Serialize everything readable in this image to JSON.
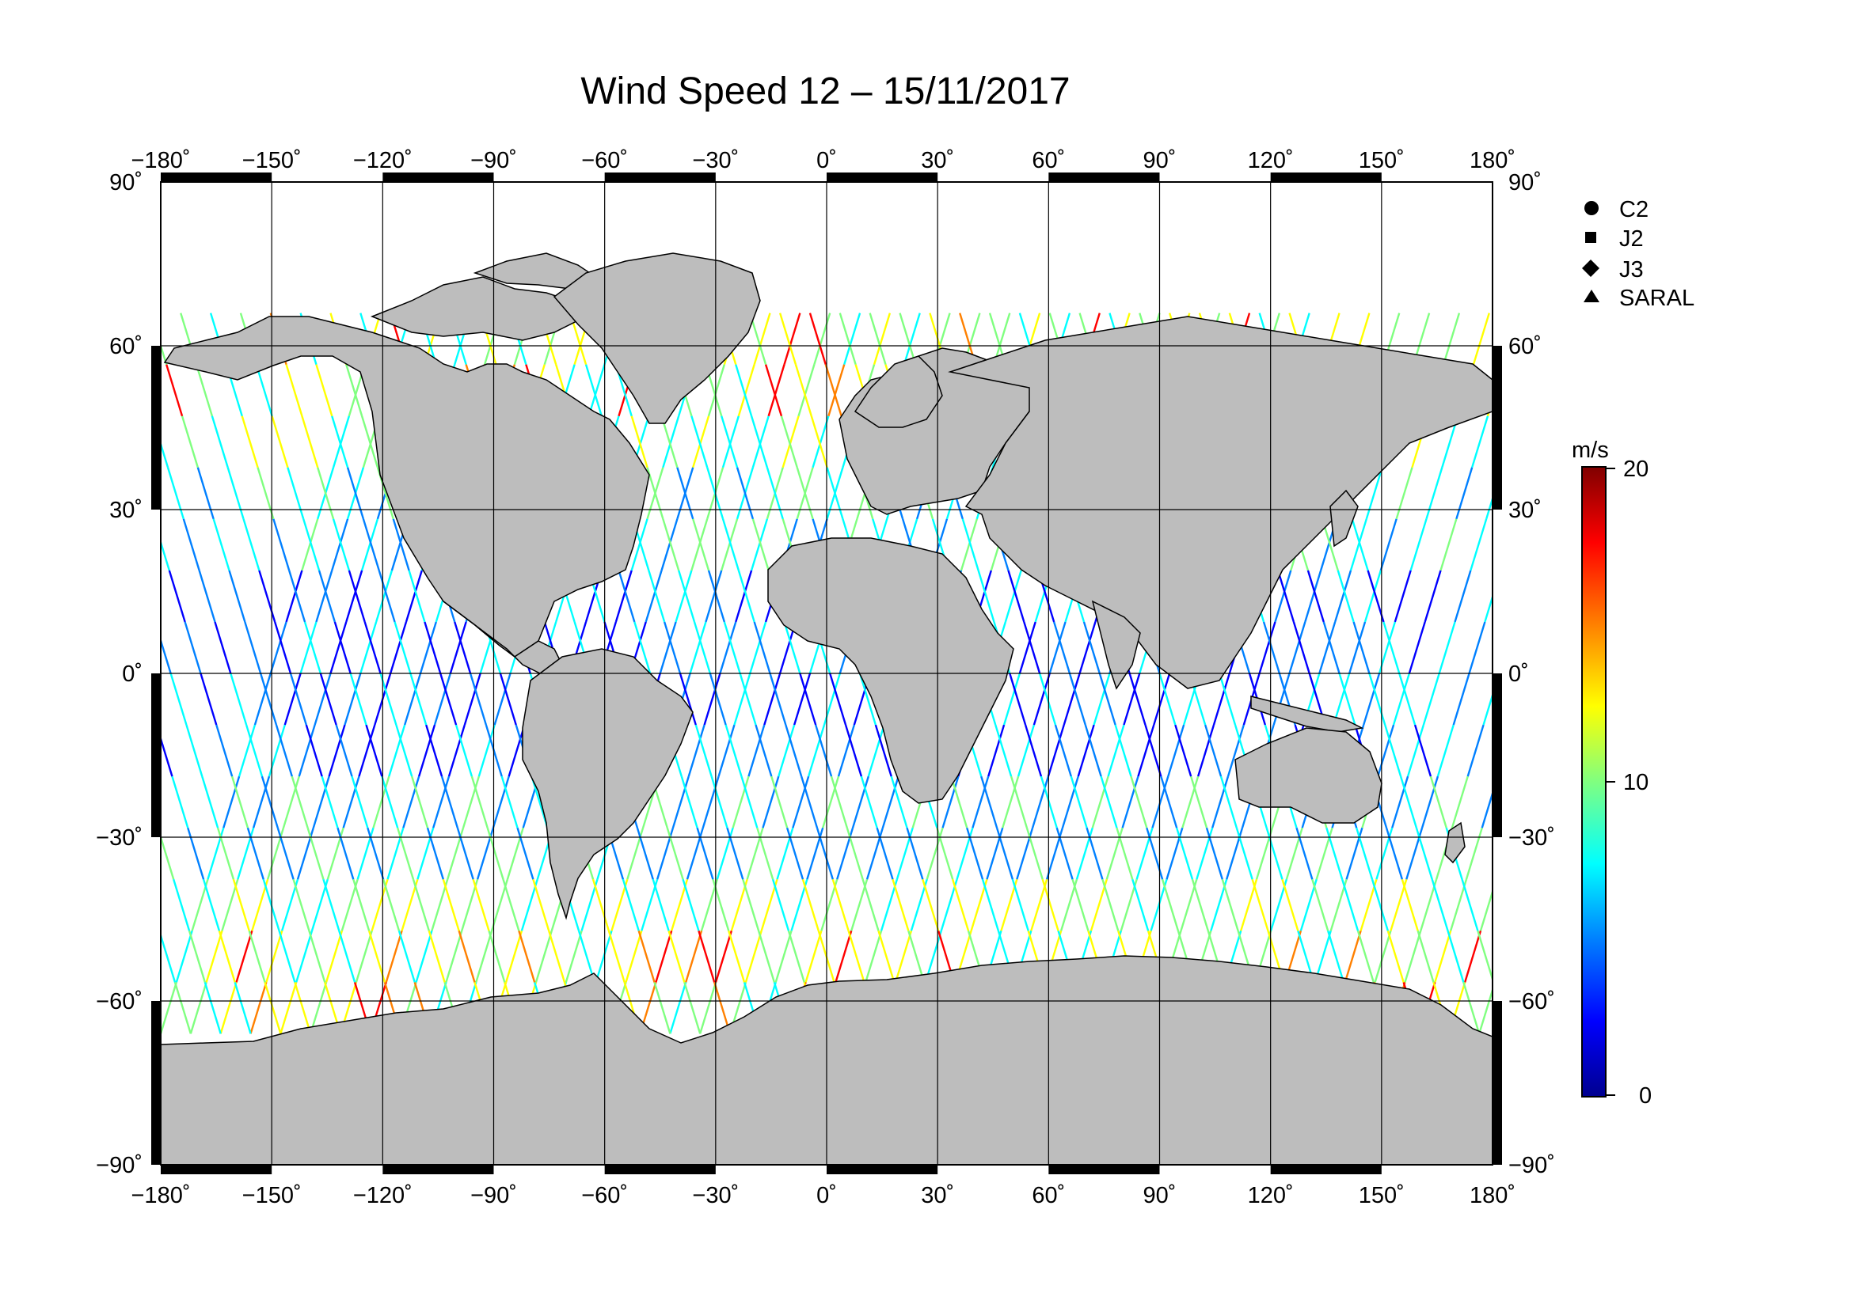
{
  "title": "Wind Speed 12 – 15/11/2017",
  "axes": {
    "lon_ticks": [
      "−180˚",
      "−150˚",
      "−120˚",
      "−90˚",
      "−60˚",
      "−30˚",
      "0˚",
      "30˚",
      "60˚",
      "90˚",
      "120˚",
      "150˚",
      "180˚"
    ],
    "lat_ticks_left": [
      "90˚",
      "60˚",
      "30˚",
      "0˚",
      "−30˚",
      "−60˚",
      "−90˚"
    ],
    "lat_ticks_right": [
      "90˚",
      "60˚",
      "30˚",
      "0˚",
      "−30˚",
      "−60˚",
      "−90˚"
    ]
  },
  "legend": {
    "items": [
      {
        "label": "C2",
        "symbol": "circle"
      },
      {
        "label": "J2",
        "symbol": "square"
      },
      {
        "label": "J3",
        "symbol": "diamond"
      },
      {
        "label": "SARAL",
        "symbol": "triangle"
      }
    ]
  },
  "colorbar": {
    "unit": "m/s",
    "min": 0,
    "max": 20,
    "tick_labels": [
      "20",
      "10",
      "0"
    ],
    "colors": [
      "#00008f",
      "#0000ff",
      "#0080ff",
      "#00ffff",
      "#80ff80",
      "#ffff00",
      "#ff8000",
      "#ff0000",
      "#800000"
    ]
  },
  "map_colors": {
    "land": "#bdbdbd",
    "ocean": "#ffffff",
    "coast": "#000000"
  },
  "chart_data": {
    "type": "scatter",
    "title": "Wind Speed 12 – 15/11/2017",
    "xlabel": "",
    "ylabel": "",
    "xlim": [
      -180,
      180
    ],
    "ylim": [
      -90,
      90
    ],
    "x_ticks": [
      -180,
      -150,
      -120,
      -90,
      -60,
      -30,
      0,
      30,
      60,
      90,
      120,
      150,
      180
    ],
    "y_ticks": [
      -90,
      -60,
      -30,
      0,
      30,
      60,
      90
    ],
    "grid": true,
    "colorscale": {
      "variable": "wind speed",
      "unit": "m/s",
      "range": [
        0,
        20
      ]
    },
    "series": [
      {
        "name": "C2"
      },
      {
        "name": "J2"
      },
      {
        "name": "J3"
      },
      {
        "name": "SARAL"
      }
    ],
    "coverage": {
      "lat_range_tracks": [
        -66,
        66
      ]
    }
  }
}
